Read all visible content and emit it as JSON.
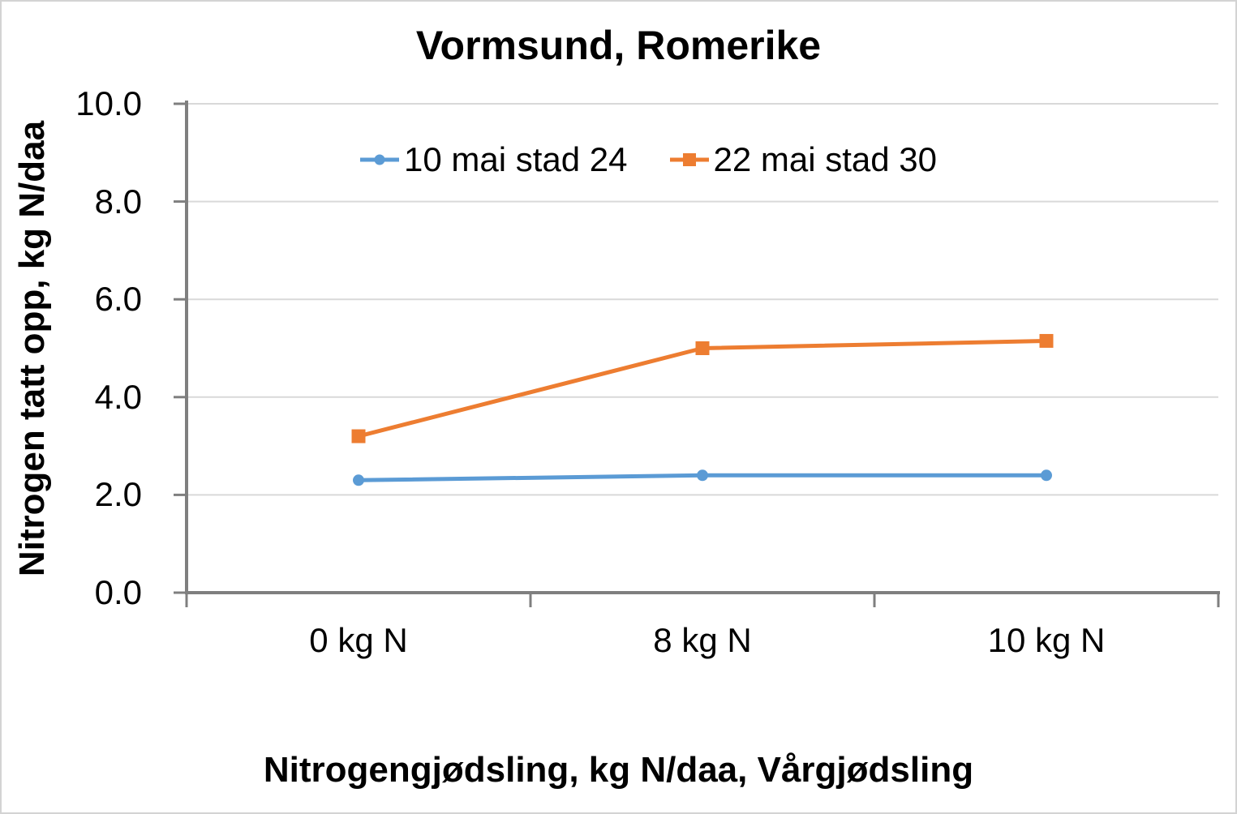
{
  "chart_data": {
    "type": "line",
    "title": "Vormsund, Romerike",
    "xlabel": "Nitrogengjødsling, kg N/daa, Vårgjødsling",
    "ylabel": "Nitrogen tatt opp, kg N/daa",
    "categories": [
      "0 kg N",
      "8 kg N",
      "10 kg N"
    ],
    "series": [
      {
        "name": "10 mai stad 24",
        "color": "#5B9BD5",
        "marker": "circle",
        "values": [
          2.3,
          2.4,
          2.4
        ]
      },
      {
        "name": "22 mai stad 30",
        "color": "#ED7D31",
        "marker": "square",
        "values": [
          3.2,
          5.0,
          5.15
        ]
      }
    ],
    "ylim": [
      0,
      10
    ],
    "y_ticks": [
      "0.0",
      "2.0",
      "4.0",
      "6.0",
      "8.0",
      "10.0"
    ],
    "grid": "horizontal-major",
    "legend_position": "top",
    "colors": {
      "axis_line": "#7F7F7F",
      "gridline": "#D9D9D9",
      "text": "#000000",
      "image_border": "#D3D3D3"
    }
  }
}
